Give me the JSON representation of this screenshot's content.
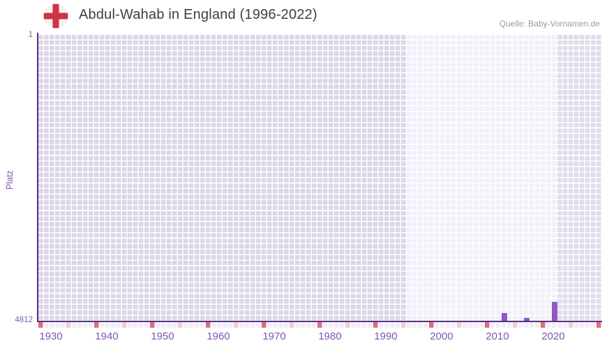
{
  "header": {
    "title": "Abdul-Wahab in England (1996-2022)",
    "source": "Quelle: Baby-Vornamen.de"
  },
  "chart": {
    "y_axis_title": "Platz",
    "y_top_label": "1",
    "y_bottom_label": "4812",
    "x_labels": [
      "1930",
      "1940",
      "1950",
      "1960",
      "1970",
      "1980",
      "1990",
      "2000",
      "2010",
      "2020"
    ]
  },
  "chart_data": {
    "type": "bar",
    "title": "Abdul-Wahab in England (1996-2022)",
    "ylabel": "Platz",
    "x_range": [
      1930,
      2030
    ],
    "y_range_rank": [
      1,
      4812
    ],
    "y_axis_inverted": true,
    "grid": true,
    "highlight_period": {
      "from": 1996,
      "to": 2022
    },
    "points": [
      {
        "year": 2013,
        "rank": 4677
      },
      {
        "year": 2017,
        "rank": 4759
      },
      {
        "year": 2022,
        "rank": 4495
      }
    ],
    "colors": {
      "bar": "#8e58c8",
      "axis": "#53307f",
      "axis_labels": "#7d55b0",
      "grid_cell_outside": "#dcd6e9",
      "grid_cell_highlight": "#f2effa",
      "grid_cell_after": "#e0ddea",
      "tick_decade": "#e26b79",
      "tick_half_decade": "#f4cdd7",
      "flag_red": "#cf3341"
    }
  }
}
